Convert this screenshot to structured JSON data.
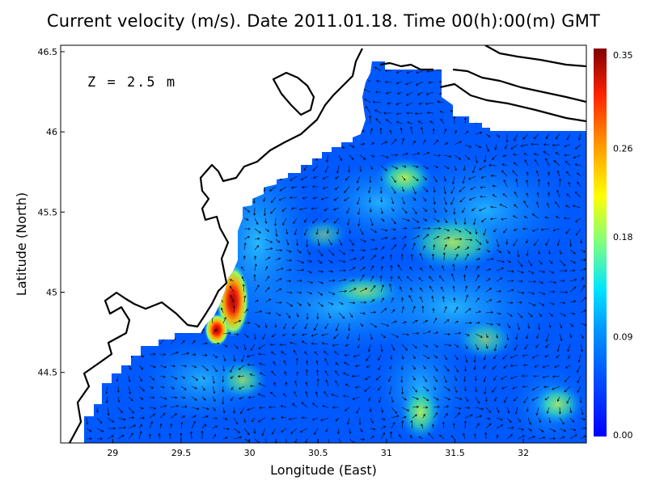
{
  "title": "Current velocity (m/s). Date 2011.01.18. Time 00(h):00(m) GMT",
  "depth_label": "Z = 2.5 m",
  "x_axis": {
    "label": "Longitude (East)",
    "ticks": [
      "29",
      "29.5",
      "30",
      "30.5",
      "31",
      "31.5",
      "32"
    ],
    "tick_values": [
      29,
      29.5,
      30,
      30.5,
      31,
      31.5,
      32
    ],
    "range": [
      28.62,
      32.46
    ]
  },
  "y_axis": {
    "label": "Latitude (North)",
    "ticks": [
      "44.5",
      "45",
      "45.5",
      "46",
      "46.5"
    ],
    "tick_values": [
      44.5,
      45,
      45.5,
      46,
      46.5
    ],
    "range": [
      44.06,
      46.54
    ]
  },
  "colorbar": {
    "ticks": [
      "0.35",
      "0.26",
      "0.18",
      "0.09",
      "0.00"
    ],
    "tick_values": [
      0.35,
      0.26,
      0.18,
      0.09,
      0.0
    ],
    "range": [
      0.0,
      0.35
    ],
    "colormap": "jet"
  },
  "colors": {
    "land": "#ffffff",
    "sea_low": "#0050ff",
    "coastline": "#000000",
    "arrows": "#000000"
  }
}
